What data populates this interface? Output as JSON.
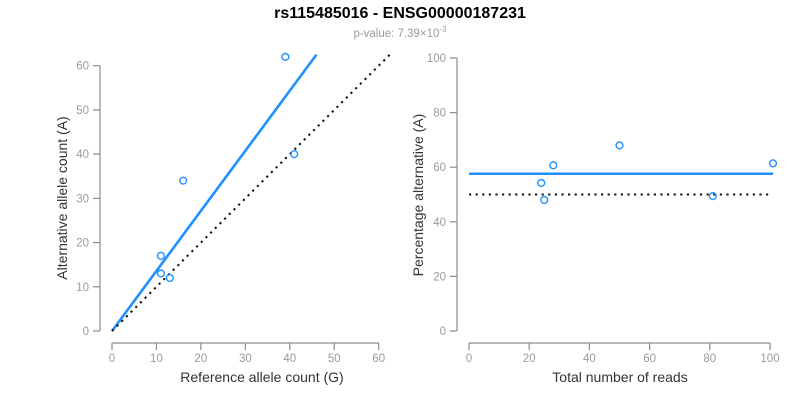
{
  "header": {
    "title": "rs115485016 - ENSG00000187231",
    "subtitle_prefix": "p-value: 7.39×10",
    "subtitle_exponent": "-3"
  },
  "colors": {
    "accent_blue": "#1E90FF",
    "line_black": "#111111",
    "axis_line": "#8c8c8c",
    "tick_label": "#9a9a9a",
    "axis_label": "#333333",
    "subtitle_gray": "#9b9b9b"
  },
  "chart_data": [
    {
      "name": "allele-counts-scatter",
      "type": "scatter",
      "xlabel": "Reference allele count (G)",
      "ylabel": "Alternative allele count (A)",
      "xticks": [
        0,
        10,
        20,
        30,
        40,
        50,
        60
      ],
      "yticks": [
        0,
        10,
        20,
        30,
        40,
        50,
        60
      ],
      "xlim": [
        0,
        63
      ],
      "ylim": [
        0,
        63
      ],
      "grid": false,
      "marker": "open-circle",
      "points": [
        {
          "x": 11,
          "y": 17
        },
        {
          "x": 11,
          "y": 13
        },
        {
          "x": 13,
          "y": 12
        },
        {
          "x": 16,
          "y": 34
        },
        {
          "x": 39,
          "y": 62
        },
        {
          "x": 41,
          "y": 40
        }
      ],
      "lines": [
        {
          "name": "fitted-proportion-line",
          "style": "solid",
          "color_key": "accent_blue",
          "x1": 0,
          "y1": 0,
          "x2": 46,
          "y2": 62.5
        },
        {
          "name": "identity-line",
          "style": "dotted",
          "color_key": "line_black",
          "x1": 0,
          "y1": 0,
          "x2": 62.5,
          "y2": 62.5
        }
      ]
    },
    {
      "name": "percentage-alternative-scatter",
      "type": "scatter",
      "xlabel": "Total number of reads",
      "ylabel": "Percentage alternative (A)",
      "xticks": [
        0,
        20,
        40,
        60,
        80,
        100
      ],
      "yticks": [
        0,
        20,
        40,
        60,
        80,
        100
      ],
      "xlim": [
        0,
        104
      ],
      "ylim": [
        0,
        100
      ],
      "grid": false,
      "marker": "open-circle",
      "points": [
        {
          "x": 24,
          "y": 54.2
        },
        {
          "x": 25,
          "y": 48.0
        },
        {
          "x": 28,
          "y": 60.7
        },
        {
          "x": 50,
          "y": 68.0
        },
        {
          "x": 81,
          "y": 49.4
        },
        {
          "x": 101,
          "y": 61.4
        }
      ],
      "lines": [
        {
          "name": "fitted-proportion-line",
          "style": "solid",
          "color_key": "accent_blue",
          "x1": 0,
          "y1": 57.6,
          "x2": 101,
          "y2": 57.6
        },
        {
          "name": "null-50pct-line",
          "style": "dotted",
          "color_key": "line_black",
          "x1": 0,
          "y1": 50,
          "x2": 100,
          "y2": 50
        }
      ]
    }
  ]
}
